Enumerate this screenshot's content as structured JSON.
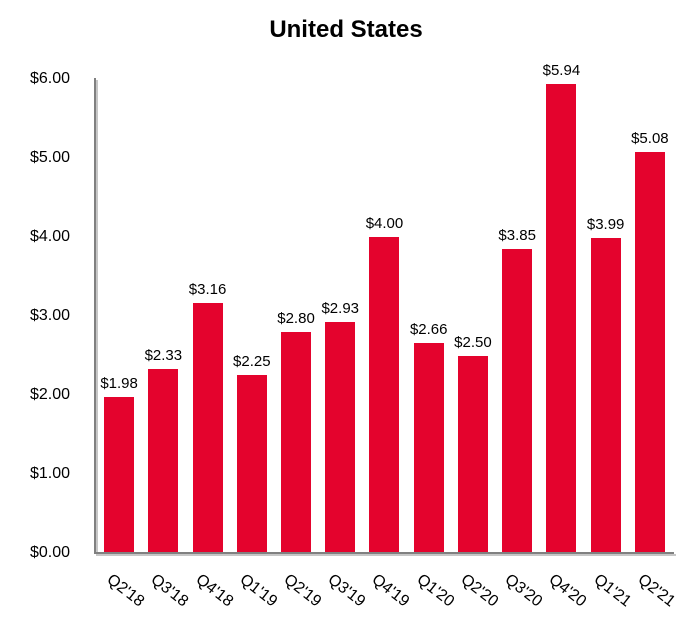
{
  "chart_data": {
    "type": "bar",
    "title": "United States",
    "categories": [
      "Q2'18",
      "Q3'18",
      "Q4'18",
      "Q1'19",
      "Q2'19",
      "Q3'19",
      "Q4'19",
      "Q1'20",
      "Q2'20",
      "Q3'20",
      "Q4'20",
      "Q1'21",
      "Q2'21"
    ],
    "values": [
      1.98,
      2.33,
      3.16,
      2.25,
      2.8,
      2.93,
      4.0,
      2.66,
      2.5,
      3.85,
      5.94,
      3.99,
      5.08
    ],
    "data_labels": [
      "$1.98",
      "$2.33",
      "$3.16",
      "$2.25",
      "$2.80",
      "$2.93",
      "$4.00",
      "$2.66",
      "$2.50",
      "$3.85",
      "$5.94",
      "$3.99",
      "$5.08"
    ],
    "y_ticks": [
      "$6.00",
      "$5.00",
      "$4.00",
      "$3.00",
      "$2.00",
      "$1.00",
      "$0.00"
    ],
    "ylim": [
      0,
      6
    ],
    "xlabel": "",
    "ylabel": "",
    "grid": false,
    "legend": false,
    "x_tick_rotation_deg": -38,
    "bar_color": "#e4032d",
    "axis_color": "#808080",
    "axis_shadow_color": "#c6c6c6",
    "text_color": "#000000"
  }
}
